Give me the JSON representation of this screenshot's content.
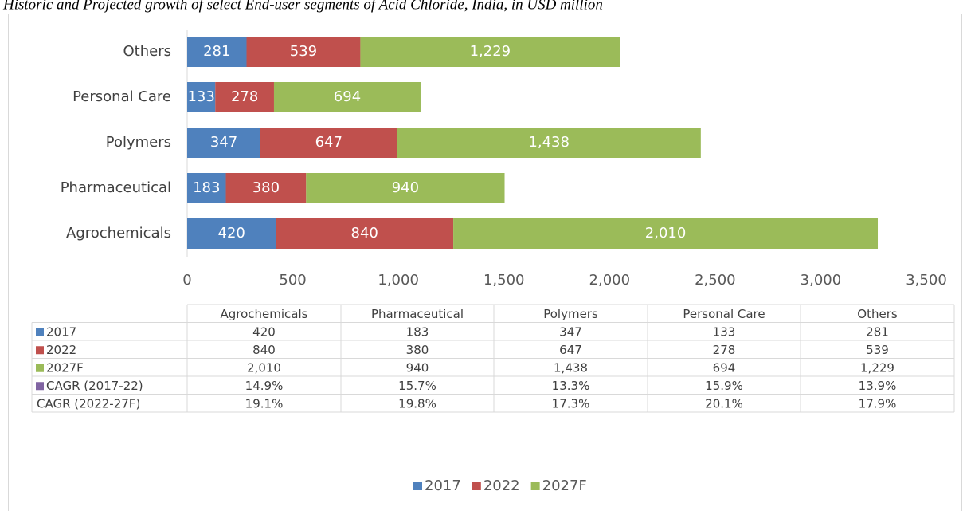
{
  "chart_data": {
    "type": "bar",
    "orientation": "horizontal",
    "stacked": true,
    "title": "Historic and Projected growth of select End-user segments of Acid Chloride, India, in USD million",
    "categories": [
      "Agrochemicals",
      "Pharmaceutical",
      "Polymers",
      "Personal Care",
      "Others"
    ],
    "series": [
      {
        "name": "2017",
        "color": "#4f81bd",
        "values": [
          420,
          183,
          347,
          133,
          281
        ],
        "value_labels": [
          "420",
          "183",
          "347",
          "133",
          "281"
        ]
      },
      {
        "name": "2022",
        "color": "#c0504d",
        "values": [
          840,
          380,
          647,
          278,
          539
        ],
        "value_labels": [
          "840",
          "380",
          "647",
          "278",
          "539"
        ]
      },
      {
        "name": "2027F",
        "color": "#9bbb59",
        "values": [
          2010,
          940,
          1438,
          694,
          1229
        ],
        "value_labels": [
          "2,010",
          "940",
          "1,438",
          "694",
          "1,229"
        ]
      }
    ],
    "table_rows": [
      {
        "name": "CAGR (2017-22)",
        "color": "#8064a2",
        "values": [
          14.9,
          15.7,
          13.3,
          15.9,
          13.9
        ],
        "value_labels": [
          "14.9%",
          "15.7%",
          "13.3%",
          "15.9%",
          "13.9%"
        ]
      },
      {
        "name": "CAGR (2022-27F)",
        "values": [
          19.1,
          19.8,
          17.3,
          20.1,
          17.9
        ],
        "value_labels": [
          "19.1%",
          "19.8%",
          "17.3%",
          "20.1%",
          "17.9%"
        ]
      }
    ],
    "xlim": [
      0,
      3500
    ],
    "xticks": [
      0,
      500,
      {
        "value": 1000,
        "label": "1,000"
      },
      {
        "value": 1500,
        "label": "1,500"
      },
      {
        "value": 2000,
        "label": "2,000"
      },
      {
        "value": 2500,
        "label": "2,500"
      },
      {
        "value": 3000,
        "label": "3,000"
      },
      {
        "value": 3500,
        "label": "3,500"
      }
    ],
    "grid": false,
    "legend": "bottom"
  }
}
